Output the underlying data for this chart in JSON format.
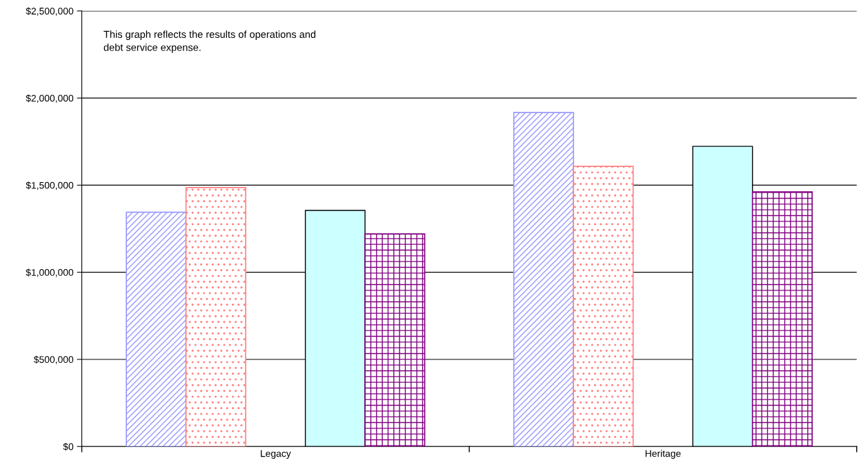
{
  "chart_data": {
    "type": "bar",
    "categories": [
      "Legacy",
      "Heritage"
    ],
    "series": [
      {
        "color": "#9999ff",
        "values": [
          1345000,
          1917000
        ]
      },
      {
        "color": "#ff8080",
        "values": [
          1486000,
          1608000
        ]
      },
      {
        "values": [
          null,
          null
        ]
      },
      {
        "color": "#ccffff",
        "values": [
          1355000,
          1723000
        ]
      },
      {
        "color": "#800080",
        "values": [
          1220000,
          1462000
        ]
      }
    ],
    "ylim": [
      0,
      2500000
    ],
    "yticks": [
      {
        "value": 0,
        "label": "$0"
      },
      {
        "value": 500000,
        "label": "$500,000"
      },
      {
        "value": 1000000,
        "label": "$1,000,000"
      },
      {
        "value": 1500000,
        "label": "$1,500,000"
      },
      {
        "value": 2000000,
        "label": "$2,000,000"
      },
      {
        "value": 2500000,
        "label": "$2,500,000"
      }
    ],
    "grid": "y",
    "annotations": [
      "This graph reflects the results of operations and\ndebt service expense."
    ]
  }
}
